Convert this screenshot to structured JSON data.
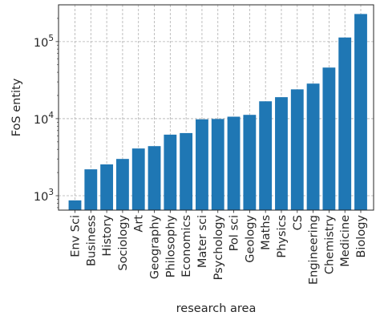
{
  "chart_data": {
    "type": "bar",
    "xlabel": "research area",
    "ylabel": "FoS entity",
    "yscale": "log",
    "ylim": [
      650,
      300000
    ],
    "grid": true,
    "bar_color": "#1f77b4",
    "grid_color": "#b0b0b0",
    "categories": [
      "Env Sci",
      "Business",
      "History",
      "Sociology",
      "Art",
      "Geography",
      "Philosophy",
      "Economics",
      "Mater sci",
      "Psychology",
      "Pol sci",
      "Geology",
      "Maths",
      "Physics",
      "CS",
      "Engineering",
      "Chemistry",
      "Medicine",
      "Biology"
    ],
    "values": [
      870,
      2200,
      2550,
      3000,
      4100,
      4400,
      6200,
      6500,
      9800,
      9900,
      10600,
      11200,
      16800,
      19000,
      24000,
      28500,
      46000,
      113000,
      228000
    ],
    "yticks": [
      {
        "value": 1000,
        "base": "10",
        "exp": "3"
      },
      {
        "value": 10000,
        "base": "10",
        "exp": "4"
      },
      {
        "value": 100000,
        "base": "10",
        "exp": "5"
      }
    ]
  }
}
